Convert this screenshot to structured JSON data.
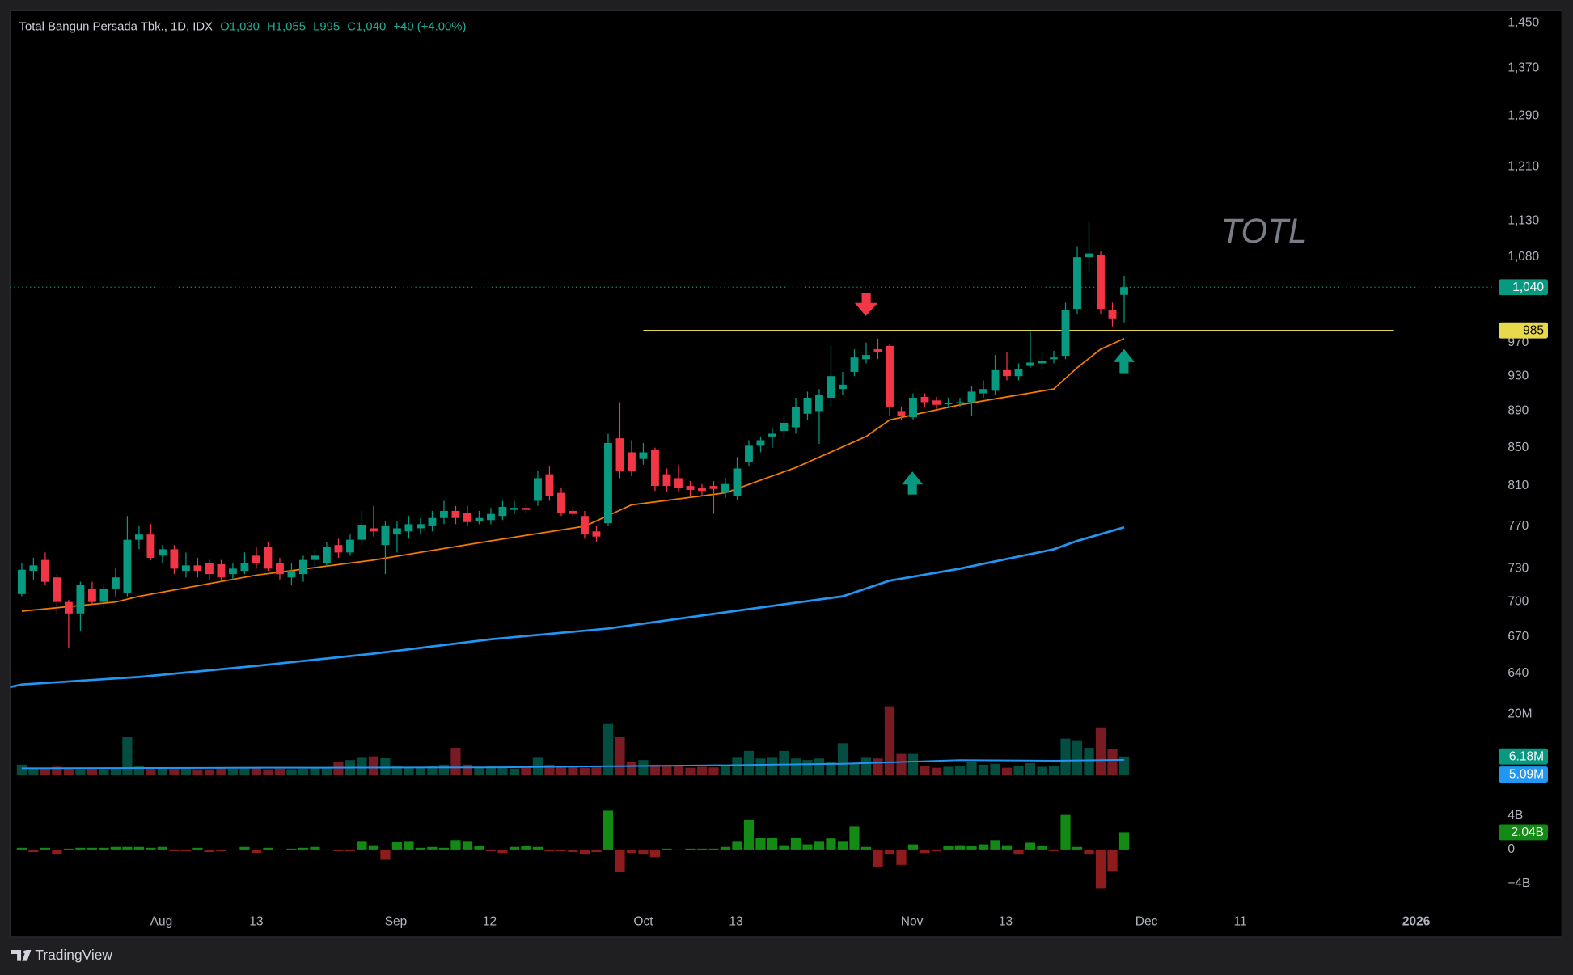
{
  "chart_data": {
    "type": "candlestick",
    "title": "Total Bangun Persada Tbk., 1D, IDX",
    "header_values": [
      "O1,030",
      "H1,055",
      "L995",
      "C1,040",
      "+40 (+4.00%)"
    ],
    "watermark": "TOTL",
    "footer": "TradingView",
    "up_color": "#089981",
    "down_color": "#f23645",
    "log_scale": true,
    "grid": false,
    "xlim": [
      -1,
      125.6
    ],
    "xticks": [
      {
        "value": 11.9,
        "label": "Aug"
      },
      {
        "value": 20,
        "label": "13"
      },
      {
        "value": 31.9,
        "label": "Sep"
      },
      {
        "value": 39.9,
        "label": "12"
      },
      {
        "value": 53,
        "label": "Oct"
      },
      {
        "value": 60.9,
        "label": "13"
      },
      {
        "value": 75.9,
        "label": "Nov"
      },
      {
        "value": 83.9,
        "label": "13"
      },
      {
        "value": 95.9,
        "label": "Dec"
      },
      {
        "value": 103.9,
        "label": "11"
      },
      {
        "value": 118.9,
        "label": "2026"
      }
    ],
    "ylim": [
      625,
      1470
    ],
    "yticks": [
      640,
      670,
      700,
      730,
      770,
      810,
      850,
      890,
      930,
      970,
      {
        "value": 1080,
        "label": "1,080"
      },
      {
        "value": 1130,
        "label": "1,130"
      },
      {
        "value": 1210,
        "label": "1,210"
      },
      {
        "value": 1290,
        "label": "1,290"
      },
      {
        "value": 1370,
        "label": "1,370"
      },
      {
        "value": 1450,
        "label": "1,450"
      }
    ],
    "open": [
      707,
      728,
      738,
      722,
      700,
      690,
      712,
      700,
      712,
      708,
      757,
      762,
      742,
      748,
      728,
      733,
      735,
      734,
      725,
      728,
      742,
      750,
      735,
      722,
      725,
      738,
      735,
      752,
      745,
      757,
      768,
      752,
      762,
      765,
      768,
      770,
      778,
      785,
      783,
      775,
      776,
      780,
      786,
      788,
      795,
      822,
      803,
      785,
      780,
      765,
      773,
      860,
      845,
      838,
      848,
      822,
      818,
      810,
      808,
      810,
      803,
      800,
      835,
      852,
      862,
      868,
      872,
      887,
      890,
      905,
      915,
      935,
      950,
      962,
      966,
      890,
      883,
      906,
      902,
      898,
      899,
      900,
      910,
      913,
      937,
      930,
      942,
      945,
      950,
      954,
      1012,
      1080,
      1083,
      1010,
      1030
    ],
    "high": [
      735,
      740,
      745,
      725,
      702,
      718,
      718,
      716,
      730,
      780,
      770,
      772,
      752,
      752,
      745,
      740,
      738,
      738,
      735,
      745,
      750,
      755,
      740,
      735,
      742,
      748,
      755,
      758,
      762,
      785,
      790,
      775,
      775,
      780,
      778,
      785,
      795,
      790,
      790,
      785,
      788,
      795,
      795,
      792,
      826,
      830,
      808,
      790,
      785,
      770,
      865,
      900,
      858,
      855,
      850,
      828,
      832,
      815,
      812,
      815,
      818,
      840,
      858,
      862,
      872,
      885,
      905,
      912,
      915,
      966,
      935,
      962,
      970,
      975,
      968,
      895,
      910,
      910,
      906,
      905,
      905,
      918,
      925,
      955,
      958,
      945,
      985,
      958,
      960,
      1020,
      1095,
      1130,
      1088,
      1020,
      1055
    ],
    "low": [
      705,
      720,
      715,
      690,
      661,
      675,
      698,
      695,
      705,
      705,
      748,
      738,
      735,
      725,
      722,
      722,
      720,
      720,
      720,
      725,
      730,
      728,
      720,
      715,
      718,
      732,
      732,
      740,
      742,
      752,
      760,
      725,
      745,
      758,
      762,
      765,
      772,
      772,
      770,
      772,
      772,
      776,
      782,
      782,
      790,
      795,
      780,
      778,
      758,
      755,
      770,
      818,
      820,
      832,
      805,
      804,
      804,
      800,
      800,
      782,
      798,
      796,
      830,
      845,
      850,
      860,
      865,
      880,
      854,
      895,
      908,
      930,
      945,
      950,
      885,
      880,
      880,
      895,
      892,
      894,
      895,
      885,
      905,
      908,
      925,
      925,
      940,
      938,
      945,
      950,
      1005,
      1060,
      1005,
      990,
      995
    ],
    "close": [
      729,
      733,
      718,
      700,
      690,
      715,
      700,
      712,
      722,
      757,
      762,
      740,
      748,
      730,
      733,
      728,
      725,
      722,
      730,
      735,
      735,
      730,
      725,
      728,
      738,
      742,
      750,
      745,
      757,
      771,
      765,
      770,
      768,
      772,
      772,
      778,
      785,
      778,
      774,
      778,
      782,
      789,
      788,
      786,
      818,
      800,
      783,
      782,
      762,
      760,
      855,
      825,
      825,
      845,
      810,
      810,
      808,
      806,
      805,
      807,
      812,
      828,
      852,
      858,
      865,
      877,
      895,
      905,
      908,
      930,
      920,
      952,
      955,
      958,
      895,
      885,
      905,
      900,
      897,
      899,
      900,
      912,
      915,
      937,
      930,
      938,
      946,
      948,
      952,
      1010,
      1080,
      1085,
      1012,
      1000,
      1040
    ],
    "series": [
      {
        "color": "#f57c00",
        "x": [
          0,
          8,
          10,
          20,
          30,
          40,
          48,
          52,
          60,
          66,
          72,
          74,
          80,
          88,
          90,
          92,
          94
        ],
        "values": [
          692,
          700,
          705,
          724,
          738,
          756,
          770,
          791,
          803,
          829,
          862,
          880,
          897,
          915,
          940,
          962,
          975
        ]
      },
      {
        "color": "#2196f3",
        "x": [
          -1,
          0,
          10,
          20,
          30,
          40,
          50,
          60,
          70,
          74,
          80,
          88,
          90,
          94
        ],
        "values": [
          629,
          631,
          637,
          646,
          656,
          668,
          677,
          691,
          705,
          719,
          730,
          748,
          756,
          769
        ]
      }
    ],
    "last_price": {
      "value": 1040,
      "label": "1,040"
    },
    "level": {
      "value": 985,
      "label": "985",
      "x": [
        53,
        117
      ],
      "color": "#e8d84c"
    },
    "volume": {
      "ylim": [
        0,
        30
      ],
      "yticks": [
        {
          "value": 20,
          "label": "20M"
        }
      ],
      "values": [
        3.5,
        2.2,
        2.5,
        2.8,
        2.5,
        2.0,
        2.3,
        2.0,
        2.2,
        12.5,
        3.0,
        2.5,
        2.4,
        2.6,
        2.2,
        2.0,
        2.0,
        2.5,
        2.2,
        2.3,
        2.6,
        2.0,
        2.2,
        2.0,
        2.2,
        2.3,
        2.4,
        4.5,
        5.0,
        6.0,
        6.2,
        5.8,
        3.0,
        2.5,
        2.7,
        3.0,
        3.5,
        9.0,
        3.5,
        2.8,
        3.0,
        2.4,
        2.2,
        2.5,
        6.0,
        3.5,
        2.8,
        3.2,
        2.5,
        3.0,
        17.0,
        12.5,
        4.5,
        5.0,
        3.5,
        3.0,
        3.2,
        2.5,
        2.8,
        2.6,
        3.0,
        6.0,
        8.0,
        5.5,
        6.0,
        8.0,
        5.5,
        5.0,
        5.5,
        4.5,
        10.5,
        4.0,
        6.0,
        5.5,
        22.6,
        7.0,
        7.0,
        3.0,
        2.5,
        2.8,
        3.0,
        4.5,
        3.5,
        3.8,
        2.5,
        3.0,
        4.0,
        2.8,
        3.0,
        12.0,
        11.5,
        9.0,
        15.7,
        8.5,
        6.18
      ],
      "last": {
        "value": 6.18,
        "label": "6.18M"
      },
      "ma": {
        "color": "#2196f3",
        "x": [
          0,
          20,
          40,
          50,
          60,
          70,
          80,
          88,
          94
        ],
        "values": [
          2.3,
          2.5,
          2.6,
          3.0,
          3.3,
          3.8,
          5.0,
          4.8,
          5.09
        ],
        "last": {
          "value": 5.09,
          "label": "5.09M"
        }
      }
    },
    "flow": {
      "ylim": [
        -6,
        6
      ],
      "yticks": [
        {
          "value": 4,
          "label": "4B"
        },
        0,
        {
          "value": -4,
          "label": "−4B"
        }
      ],
      "up_color": "#138a13",
      "down_color": "#8e1c1c",
      "values": [
        0.2,
        -0.3,
        0.2,
        -0.5,
        0.1,
        0.2,
        0.2,
        0.2,
        0.3,
        0.3,
        0.3,
        0.2,
        0.3,
        -0.2,
        -0.2,
        0.2,
        -0.3,
        -0.2,
        -0.1,
        0.3,
        -0.4,
        0.2,
        -0.1,
        0.1,
        0.2,
        0.3,
        -0.1,
        -0.2,
        -0.2,
        1.0,
        0.5,
        -1.2,
        0.9,
        1.0,
        0.2,
        0.3,
        0.2,
        1.1,
        1.0,
        0.4,
        -0.2,
        -0.4,
        0.3,
        0.4,
        0.3,
        -0.2,
        -0.2,
        -0.3,
        -0.5,
        -0.3,
        4.6,
        -2.6,
        -0.4,
        -0.5,
        -0.9,
        0.1,
        -0.1,
        0.1,
        0.1,
        0.1,
        0.3,
        1.0,
        3.5,
        1.4,
        1.4,
        0.5,
        1.4,
        0.6,
        1.0,
        1.3,
        1.0,
        2.7,
        0.3,
        -2.0,
        -0.5,
        -1.8,
        0.6,
        -0.4,
        -0.2,
        0.4,
        0.5,
        0.4,
        0.6,
        1.1,
        0.5,
        -0.5,
        0.8,
        0.4,
        -0.2,
        4.1,
        0.3,
        -0.5,
        -4.6,
        -2.5,
        2.04
      ],
      "last": {
        "value": 2.04,
        "label": "2.04B"
      }
    }
  }
}
